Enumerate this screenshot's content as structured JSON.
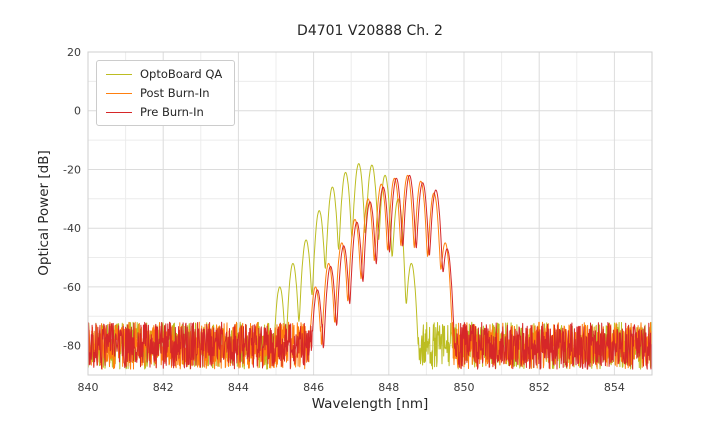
{
  "chart_data": {
    "type": "line",
    "title": "D4701 V20888 Ch. 2",
    "xlabel": "Wavelength [nm]",
    "ylabel": "Optical Power [dB]",
    "xlim": [
      840,
      855
    ],
    "ylim": [
      -90,
      20
    ],
    "x_ticks": [
      840,
      842,
      844,
      846,
      848,
      850,
      852,
      854
    ],
    "y_ticks": [
      20,
      0,
      -20,
      -40,
      -60,
      -80
    ],
    "grid": "major and minor, light gray on white",
    "legend_position": "upper left",
    "noise_seed": 7,
    "sample_step_nm": 0.011,
    "mode_sigma_nm": 0.05,
    "series": [
      {
        "name": "OptoBoard QA",
        "color": "#bcbd22",
        "noise_floor_db": [
          -88,
          -72
        ],
        "modes": [
          [
            845.1,
            -60
          ],
          [
            845.45,
            -52
          ],
          [
            845.8,
            -44
          ],
          [
            846.15,
            -34
          ],
          [
            846.5,
            -26
          ],
          [
            846.85,
            -21
          ],
          [
            847.2,
            -18
          ],
          [
            847.55,
            -18.5
          ],
          [
            847.9,
            -22
          ],
          [
            848.25,
            -30
          ],
          [
            848.6,
            -52
          ]
        ]
      },
      {
        "name": "Post Burn-In",
        "color": "#ff7f0e",
        "noise_floor_db": [
          -88,
          -72
        ],
        "modes": [
          [
            846.05,
            -60
          ],
          [
            846.4,
            -52
          ],
          [
            846.75,
            -45
          ],
          [
            847.1,
            -37
          ],
          [
            847.45,
            -30
          ],
          [
            847.8,
            -25
          ],
          [
            848.15,
            -23
          ],
          [
            848.5,
            -22
          ],
          [
            848.85,
            -24
          ],
          [
            849.2,
            -28
          ],
          [
            849.5,
            -45
          ]
        ]
      },
      {
        "name": "Pre Burn-In",
        "color": "#d62728",
        "noise_floor_db": [
          -88,
          -72
        ],
        "modes": [
          [
            846.1,
            -61
          ],
          [
            846.45,
            -53
          ],
          [
            846.8,
            -46
          ],
          [
            847.15,
            -38
          ],
          [
            847.5,
            -31
          ],
          [
            847.85,
            -26
          ],
          [
            848.2,
            -23
          ],
          [
            848.55,
            -22
          ],
          [
            848.9,
            -24.5
          ],
          [
            849.25,
            -27
          ],
          [
            849.55,
            -47
          ]
        ]
      }
    ]
  }
}
